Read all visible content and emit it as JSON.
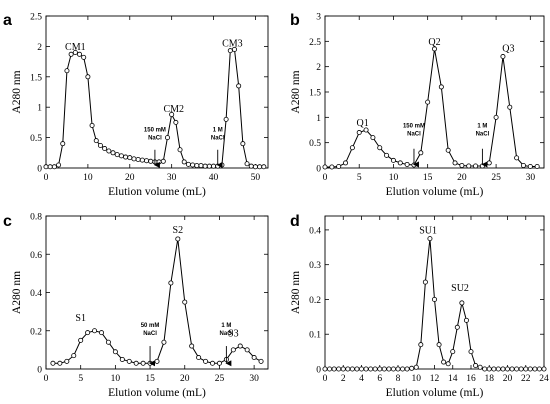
{
  "chart_data": [
    {
      "panel": "a",
      "type": "line",
      "xlabel": "Elution volume (mL)",
      "ylabel": "A280 nm",
      "xlim": [
        0,
        53
      ],
      "ylim": [
        0,
        2.5
      ],
      "xticks": [
        0,
        10,
        20,
        30,
        40,
        50
      ],
      "yticks": [
        0,
        0.5,
        1,
        1.5,
        2,
        2.5
      ],
      "ytick_labels": [
        "0",
        "0.5",
        "1",
        "1.5",
        "2",
        "2.5"
      ],
      "grid": false,
      "marker": "open-circle",
      "series": [
        {
          "x": [
            0,
            1,
            2,
            3,
            4,
            5,
            6,
            7,
            8,
            9,
            10,
            11,
            12,
            13,
            14,
            15,
            16,
            17,
            18,
            19,
            20,
            21,
            22,
            23,
            24,
            25,
            26,
            27,
            28,
            29,
            30,
            31,
            32,
            33,
            34,
            35,
            36,
            37,
            38,
            39,
            40,
            41,
            42,
            43,
            44,
            45,
            46,
            47,
            48,
            49,
            50,
            51,
            52
          ],
          "y": [
            0.02,
            0.02,
            0.02,
            0.05,
            0.4,
            1.6,
            1.87,
            1.9,
            1.87,
            1.82,
            1.5,
            0.7,
            0.45,
            0.37,
            0.32,
            0.28,
            0.25,
            0.22,
            0.2,
            0.18,
            0.17,
            0.15,
            0.14,
            0.13,
            0.12,
            0.11,
            0.1,
            0.1,
            0.11,
            0.5,
            0.88,
            0.75,
            0.3,
            0.1,
            0.06,
            0.05,
            0.04,
            0.04,
            0.03,
            0.03,
            0.03,
            0.03,
            0.05,
            0.8,
            1.93,
            1.95,
            1.35,
            0.4,
            0.07,
            0.03,
            0.02,
            0.02,
            0.02
          ]
        }
      ],
      "peak_labels": [
        {
          "text": "CM1",
          "x": 7,
          "y": 1.94
        },
        {
          "text": "CM2",
          "x": 30.5,
          "y": 0.92
        },
        {
          "text": "CM3",
          "x": 44.5,
          "y": 2.0
        }
      ],
      "annotations": [
        {
          "text": [
            "150 mM",
            "NaCl"
          ],
          "x": 26,
          "y_text": 0.6,
          "arrow_from": 0.3,
          "arrow_to": 0.05
        },
        {
          "text": [
            "1 M",
            "NaCl"
          ],
          "x": 41,
          "y_text": 0.6,
          "arrow_from": 0.3,
          "arrow_to": 0.05
        }
      ]
    },
    {
      "panel": "b",
      "type": "line",
      "xlabel": "Elution volume (mL)",
      "ylabel": "A280 nm",
      "xlim": [
        0,
        32
      ],
      "ylim": [
        0,
        3
      ],
      "xticks": [
        0,
        5,
        10,
        15,
        20,
        25,
        30
      ],
      "yticks": [
        0,
        0.5,
        1,
        1.5,
        2,
        2.5,
        3
      ],
      "ytick_labels": [
        "0",
        "0.5",
        "1",
        "1.5",
        "2",
        "2.5",
        "3"
      ],
      "grid": false,
      "marker": "open-circle",
      "series": [
        {
          "x": [
            0,
            1,
            2,
            3,
            4,
            5,
            6,
            7,
            8,
            9,
            10,
            11,
            12,
            13,
            14,
            15,
            16,
            17,
            18,
            19,
            20,
            21,
            22,
            23,
            24,
            25,
            26,
            27,
            28,
            29,
            30,
            31
          ],
          "y": [
            0.02,
            0.02,
            0.03,
            0.1,
            0.4,
            0.7,
            0.75,
            0.6,
            0.4,
            0.25,
            0.15,
            0.1,
            0.07,
            0.06,
            0.3,
            1.3,
            2.35,
            1.6,
            0.35,
            0.1,
            0.05,
            0.04,
            0.04,
            0.04,
            0.1,
            1.0,
            2.2,
            1.2,
            0.2,
            0.05,
            0.03,
            0.03
          ]
        }
      ],
      "peak_labels": [
        {
          "text": "Q1",
          "x": 5.5,
          "y": 0.83
        },
        {
          "text": "Q2",
          "x": 16,
          "y": 2.43
        },
        {
          "text": "Q3",
          "x": 26.8,
          "y": 2.3
        }
      ],
      "annotations": [
        {
          "text": [
            "150 mM",
            "NaCl"
          ],
          "x": 13,
          "y_text": 0.8,
          "arrow_from": 0.38,
          "arrow_to": 0.07
        },
        {
          "text": [
            "1 M",
            "NaCl"
          ],
          "x": 23,
          "y_text": 0.8,
          "arrow_from": 0.38,
          "arrow_to": 0.07
        }
      ]
    },
    {
      "panel": "c",
      "type": "line",
      "xlabel": "Elution volume (mL)",
      "ylabel": "A280 nm",
      "xlim": [
        0,
        32
      ],
      "ylim": [
        0,
        0.8
      ],
      "xticks": [
        0,
        5,
        10,
        15,
        20,
        25,
        30
      ],
      "yticks": [
        0,
        0.2,
        0.4,
        0.6,
        0.8
      ],
      "ytick_labels": [
        "0",
        "0.2",
        "0.4",
        "0.6",
        "0.8"
      ],
      "grid": false,
      "marker": "open-circle",
      "series": [
        {
          "x": [
            1,
            2,
            3,
            4,
            5,
            6,
            7,
            8,
            9,
            10,
            11,
            12,
            13,
            14,
            15,
            16,
            17,
            18,
            19,
            20,
            21,
            22,
            23,
            24,
            25,
            26,
            27,
            28,
            29,
            30,
            31
          ],
          "y": [
            0.03,
            0.03,
            0.04,
            0.07,
            0.15,
            0.19,
            0.2,
            0.19,
            0.14,
            0.09,
            0.05,
            0.04,
            0.03,
            0.03,
            0.03,
            0.04,
            0.14,
            0.45,
            0.68,
            0.35,
            0.12,
            0.06,
            0.04,
            0.03,
            0.03,
            0.05,
            0.1,
            0.12,
            0.1,
            0.06,
            0.04
          ]
        }
      ],
      "peak_labels": [
        {
          "text": "S1",
          "x": 5,
          "y": 0.25
        },
        {
          "text": "S2",
          "x": 19,
          "y": 0.71
        },
        {
          "text": "S3",
          "x": 27,
          "y": 0.17
        }
      ],
      "annotations": [
        {
          "text": [
            "50 mM",
            "NaCl"
          ],
          "x": 15,
          "y_text": 0.22,
          "arrow_from": 0.12,
          "arrow_to": 0.03
        },
        {
          "text": [
            "1 M",
            "NaCl"
          ],
          "x": 26,
          "y_text": 0.22,
          "arrow_from": 0.12,
          "arrow_to": 0.03
        }
      ]
    },
    {
      "panel": "d",
      "type": "line",
      "xlabel": "Elution volume (mL)",
      "ylabel": "A280 nm",
      "xlim": [
        0,
        24
      ],
      "ylim": [
        0,
        0.44
      ],
      "xticks": [
        0,
        2,
        4,
        6,
        8,
        10,
        12,
        14,
        16,
        18,
        20,
        22,
        24
      ],
      "yticks": [
        0,
        0.1,
        0.2,
        0.3,
        0.4
      ],
      "ytick_labels": [
        "0",
        "0.1",
        "0.2",
        "0.3",
        "0.4"
      ],
      "grid": false,
      "marker": "open-circle",
      "series": [
        {
          "x": [
            0,
            0.5,
            1,
            1.5,
            2,
            2.5,
            3,
            3.5,
            4,
            4.5,
            5,
            5.5,
            6,
            6.5,
            7,
            7.5,
            8,
            8.5,
            9,
            9.5,
            10,
            10.5,
            11,
            11.5,
            12,
            12.5,
            13,
            13.5,
            14,
            14.5,
            15,
            15.5,
            16,
            16.5,
            17,
            17.5,
            18,
            18.5,
            19,
            19.5,
            20,
            20.5,
            21,
            21.5,
            22,
            22.5,
            23,
            23.5,
            24
          ],
          "y": [
            0,
            0,
            0,
            0,
            0,
            0,
            0,
            0,
            0,
            0,
            0,
            0,
            0,
            0,
            0,
            0,
            0,
            0,
            0,
            0.002,
            0.005,
            0.07,
            0.25,
            0.375,
            0.2,
            0.07,
            0.02,
            0.015,
            0.05,
            0.12,
            0.19,
            0.14,
            0.05,
            0.01,
            0.005,
            0,
            0,
            0,
            0,
            0,
            0,
            0,
            0,
            0,
            0,
            0,
            0,
            0,
            0
          ]
        }
      ],
      "peak_labels": [
        {
          "text": "SU1",
          "x": 11.3,
          "y": 0.39
        },
        {
          "text": "SU2",
          "x": 14.8,
          "y": 0.225
        }
      ],
      "annotations": []
    }
  ]
}
